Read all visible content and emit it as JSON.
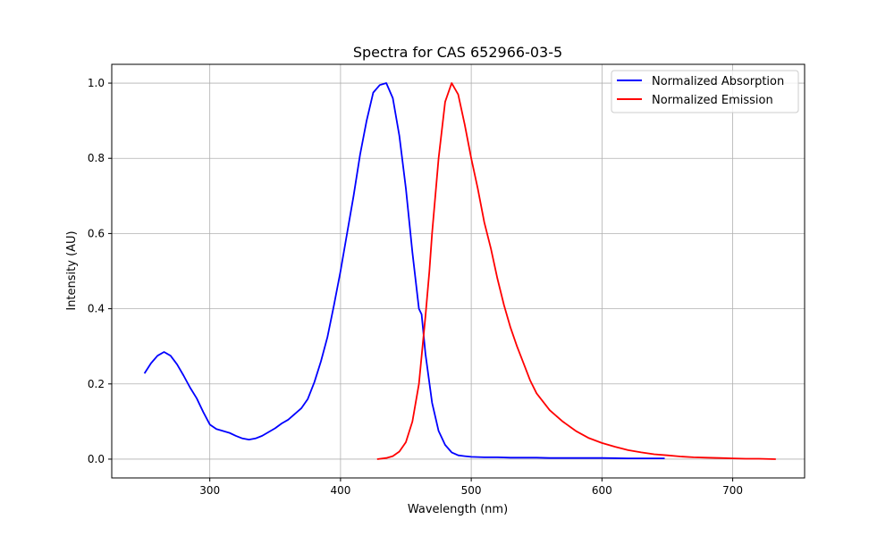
{
  "chart_data": {
    "type": "line",
    "title": "Spectra for CAS 652966-03-5",
    "xlabel": "Wavelength (nm)",
    "ylabel": "Intensity (AU)",
    "xlim": [
      225,
      755
    ],
    "ylim": [
      -0.05,
      1.05
    ],
    "xticks": [
      300,
      400,
      500,
      600,
      700
    ],
    "yticks": [
      0.0,
      0.2,
      0.4,
      0.6,
      0.8,
      1.0
    ],
    "xtick_labels": [
      "300",
      "400",
      "500",
      "600",
      "700"
    ],
    "ytick_labels": [
      "0.0",
      "0.2",
      "0.4",
      "0.6",
      "0.8",
      "1.0"
    ],
    "grid": true,
    "legend_position": "top-right",
    "series": [
      {
        "name": "Normalized Absorption",
        "color": "#0000ff",
        "x": [
          250,
          255,
          260,
          265,
          270,
          275,
          280,
          285,
          290,
          295,
          300,
          305,
          310,
          315,
          320,
          325,
          330,
          335,
          340,
          345,
          350,
          355,
          360,
          365,
          370,
          375,
          380,
          385,
          390,
          395,
          400,
          405,
          410,
          415,
          420,
          425,
          430,
          435,
          440,
          445,
          450,
          455,
          460,
          462,
          465,
          470,
          475,
          480,
          485,
          490,
          495,
          500,
          510,
          520,
          530,
          540,
          550,
          560,
          570,
          580,
          590,
          600,
          620,
          648
        ],
        "y": [
          0.228,
          0.255,
          0.275,
          0.285,
          0.275,
          0.252,
          0.222,
          0.19,
          0.162,
          0.125,
          0.092,
          0.08,
          0.075,
          0.07,
          0.062,
          0.055,
          0.052,
          0.055,
          0.062,
          0.072,
          0.082,
          0.095,
          0.105,
          0.12,
          0.135,
          0.16,
          0.205,
          0.26,
          0.325,
          0.41,
          0.5,
          0.6,
          0.7,
          0.81,
          0.9,
          0.975,
          0.995,
          1.0,
          0.96,
          0.86,
          0.72,
          0.55,
          0.4,
          0.385,
          0.28,
          0.15,
          0.075,
          0.038,
          0.018,
          0.01,
          0.008,
          0.006,
          0.005,
          0.005,
          0.004,
          0.004,
          0.004,
          0.003,
          0.003,
          0.003,
          0.003,
          0.003,
          0.002,
          0.002
        ]
      },
      {
        "name": "Normalized Emission",
        "color": "#ff0000",
        "x": [
          428,
          435,
          440,
          445,
          450,
          455,
          460,
          465,
          468,
          470,
          475,
          480,
          485,
          490,
          495,
          500,
          505,
          510,
          515,
          520,
          525,
          530,
          535,
          540,
          545,
          550,
          560,
          570,
          580,
          590,
          600,
          610,
          620,
          630,
          640,
          650,
          660,
          670,
          680,
          690,
          700,
          710,
          720,
          733
        ],
        "y": [
          0.0,
          0.003,
          0.008,
          0.02,
          0.045,
          0.1,
          0.2,
          0.38,
          0.5,
          0.6,
          0.8,
          0.95,
          1.0,
          0.97,
          0.89,
          0.8,
          0.72,
          0.63,
          0.56,
          0.48,
          0.41,
          0.35,
          0.3,
          0.255,
          0.21,
          0.175,
          0.13,
          0.1,
          0.075,
          0.056,
          0.043,
          0.033,
          0.024,
          0.018,
          0.013,
          0.01,
          0.007,
          0.005,
          0.004,
          0.003,
          0.002,
          0.001,
          0.001,
          0.0
        ]
      }
    ]
  }
}
